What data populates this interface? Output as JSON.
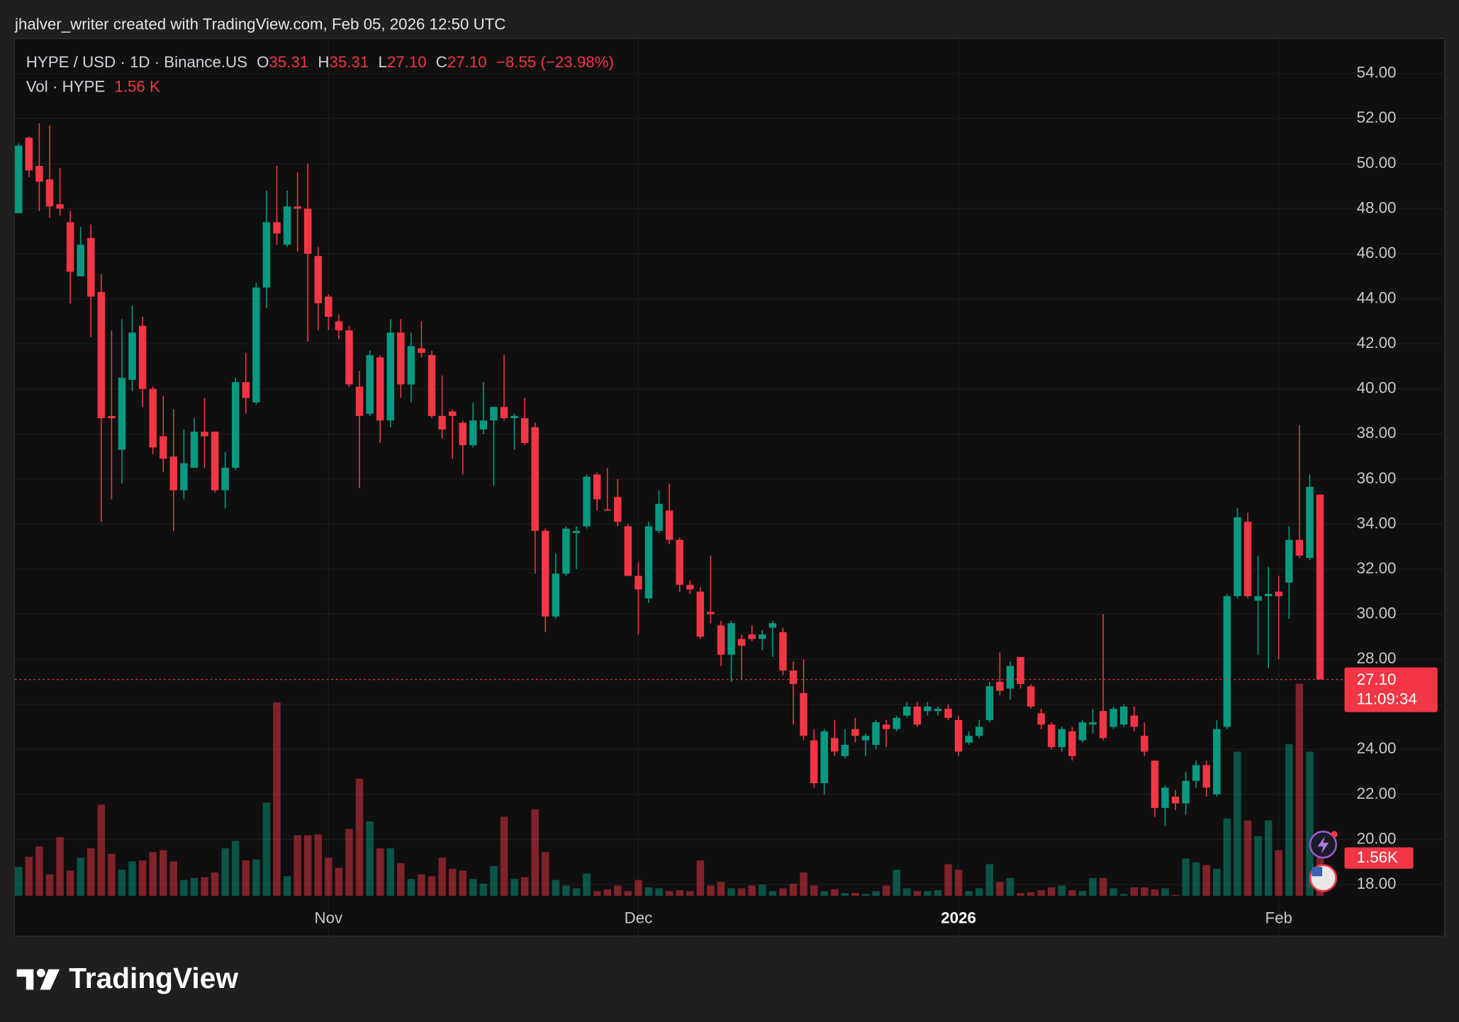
{
  "watermark": "jhalver_writer created with TradingView.com, Feb 05, 2026 12:50 UTC",
  "footer": {
    "brand": "TradingView"
  },
  "chart_data": {
    "type": "candlestick",
    "symbol": "HYPE / USD · 1D · Binance.US",
    "legend": {
      "o_label": "O",
      "open": "35.31",
      "h_label": "H",
      "high": "35.31",
      "l_label": "L",
      "low": "27.10",
      "c_label": "C",
      "close": "27.10",
      "change": "−8.55 (−23.98%)"
    },
    "volume_legend": {
      "label": "Vol · HYPE",
      "value": "1.56 K"
    },
    "open": [
      47.8,
      51.15,
      49.9,
      49.3,
      48.2,
      47.4,
      45.0,
      46.7,
      44.3,
      38.8,
      37.3,
      40.4,
      42.8,
      40.0,
      37.9,
      37.0,
      35.5,
      36.5,
      38.1,
      38.1,
      35.5,
      36.5,
      40.3,
      39.4,
      44.5,
      47.4,
      46.4,
      48.1,
      48.0,
      45.9,
      44.1,
      43.0,
      42.6,
      40.1,
      38.9,
      41.4,
      38.6,
      42.5,
      40.2,
      41.8,
      41.5,
      38.8,
      39.0,
      38.5,
      37.5,
      38.2,
      38.6,
      39.2,
      38.7,
      38.7,
      38.3,
      33.7,
      29.9,
      31.8,
      33.6,
      33.9,
      36.2,
      34.65,
      35.2,
      33.9,
      31.7,
      30.7,
      33.7,
      34.6,
      33.3,
      31.3,
      31.0,
      30.1,
      29.5,
      28.2,
      28.9,
      29.1,
      28.9,
      29.4,
      29.2,
      27.5,
      26.5,
      24.4,
      22.5,
      24.5,
      23.7,
      24.9,
      24.4,
      24.2,
      25.1,
      24.9,
      25.5,
      25.9,
      25.7,
      25.7,
      25.8,
      25.3,
      24.3,
      24.6,
      25.3,
      27.0,
      26.7,
      28.1,
      26.8,
      25.6,
      25.1,
      24.1,
      24.8,
      24.4,
      25.1,
      25.7,
      25.0,
      25.1,
      25.5,
      24.6,
      23.5,
      21.4,
      21.9,
      21.6,
      22.6,
      23.3,
      22.0,
      25.0,
      30.8,
      34.1,
      30.6,
      30.8,
      31.0,
      31.4,
      33.3,
      32.5,
      35.31
    ],
    "high": [
      50.9,
      51.2,
      51.8,
      51.7,
      49.8,
      47.9,
      47.2,
      47.3,
      45.1,
      42.6,
      43.1,
      43.7,
      43.2,
      40.1,
      39.7,
      39.1,
      38.2,
      38.7,
      39.6,
      38.1,
      37.2,
      40.5,
      41.6,
      44.7,
      48.8,
      49.9,
      48.8,
      49.6,
      50.0,
      46.3,
      44.2,
      43.3,
      42.8,
      40.8,
      41.7,
      41.5,
      43.1,
      43.1,
      42.5,
      43.0,
      41.7,
      40.6,
      39.1,
      38.6,
      39.4,
      40.3,
      39.2,
      41.5,
      38.9,
      39.6,
      38.5,
      33.8,
      32.7,
      33.9,
      33.9,
      36.2,
      36.3,
      36.5,
      36.0,
      34.0,
      32.3,
      34.1,
      35.5,
      35.8,
      33.4,
      31.5,
      31.2,
      32.6,
      29.7,
      29.7,
      29.1,
      29.5,
      29.3,
      29.7,
      29.4,
      27.9,
      28.0,
      24.9,
      24.9,
      25.3,
      24.9,
      25.4,
      24.7,
      25.3,
      25.3,
      25.5,
      26.1,
      26.1,
      26.1,
      25.9,
      26.0,
      25.5,
      24.8,
      25.3,
      27.0,
      28.3,
      27.9,
      28.1,
      26.9,
      25.8,
      25.2,
      25.0,
      25.0,
      25.3,
      25.8,
      30.0,
      25.9,
      26.0,
      25.9,
      25.2,
      23.5,
      22.4,
      22.2,
      23.0,
      23.5,
      23.5,
      25.3,
      30.9,
      34.7,
      34.5,
      32.6,
      32.1,
      31.7,
      33.9,
      38.4,
      36.2,
      35.31
    ],
    "low": [
      47.8,
      49.4,
      47.9,
      47.6,
      47.7,
      43.8,
      45.0,
      42.3,
      34.1,
      35.1,
      35.8,
      39.9,
      39.2,
      37.1,
      36.3,
      33.7,
      35.1,
      36.5,
      36.5,
      35.4,
      34.7,
      36.4,
      38.9,
      39.3,
      43.6,
      46.4,
      46.3,
      46.1,
      42.1,
      42.6,
      42.6,
      42.2,
      40.1,
      35.6,
      38.8,
      37.6,
      38.3,
      39.6,
      39.4,
      41.4,
      38.7,
      37.8,
      36.9,
      36.2,
      37.4,
      38.0,
      35.7,
      38.6,
      37.3,
      37.5,
      31.8,
      29.2,
      29.8,
      31.7,
      32.0,
      33.8,
      34.6,
      34.6,
      33.9,
      31.7,
      29.1,
      30.5,
      33.6,
      33.1,
      31.0,
      30.9,
      28.9,
      29.6,
      27.7,
      27.0,
      27.1,
      28.8,
      28.4,
      28.1,
      27.3,
      25.1,
      24.4,
      22.3,
      22.0,
      23.7,
      23.6,
      24.3,
      23.7,
      24.0,
      24.1,
      24.8,
      25.4,
      25.0,
      25.5,
      25.5,
      25.3,
      23.7,
      24.2,
      24.5,
      25.2,
      26.4,
      26.2,
      26.7,
      25.8,
      24.9,
      24.0,
      23.9,
      23.5,
      24.3,
      24.7,
      24.4,
      24.9,
      25.0,
      24.8,
      23.7,
      21.0,
      20.6,
      21.3,
      21.1,
      22.3,
      21.9,
      21.9,
      24.9,
      30.7,
      30.7,
      28.2,
      27.6,
      28.0,
      29.8,
      32.5,
      32.4,
      27.1
    ],
    "close": [
      50.8,
      49.7,
      49.2,
      48.1,
      48.0,
      45.2,
      46.4,
      44.1,
      38.7,
      38.7,
      40.5,
      42.5,
      40.0,
      37.4,
      36.9,
      35.5,
      36.7,
      38.1,
      37.9,
      35.5,
      36.5,
      40.3,
      39.6,
      44.5,
      47.4,
      46.9,
      48.1,
      48.0,
      46.0,
      43.8,
      43.2,
      42.6,
      40.2,
      38.8,
      41.5,
      38.6,
      42.5,
      40.2,
      41.9,
      41.6,
      38.8,
      38.2,
      38.8,
      37.5,
      38.6,
      38.6,
      39.2,
      38.7,
      38.8,
      37.6,
      33.7,
      29.9,
      31.8,
      33.8,
      33.7,
      36.1,
      35.1,
      34.6,
      34.1,
      31.7,
      31.1,
      33.9,
      34.9,
      33.3,
      31.3,
      31.1,
      29.0,
      30.0,
      28.2,
      29.6,
      28.6,
      28.9,
      29.1,
      29.6,
      27.5,
      26.9,
      24.6,
      22.5,
      24.8,
      23.9,
      24.2,
      24.6,
      24.6,
      25.2,
      24.9,
      25.4,
      25.9,
      25.1,
      25.9,
      25.8,
      25.4,
      23.9,
      24.6,
      25.0,
      26.8,
      26.6,
      27.7,
      26.9,
      25.9,
      25.1,
      24.1,
      24.9,
      23.7,
      25.2,
      25.2,
      24.5,
      25.8,
      25.9,
      25.0,
      23.9,
      21.4,
      22.3,
      21.6,
      22.6,
      23.3,
      22.3,
      24.9,
      30.8,
      34.3,
      30.8,
      30.8,
      30.9,
      30.8,
      33.3,
      32.6,
      35.65,
      27.1
    ],
    "volume": [
      1178,
      1596,
      2014,
      874,
      2394,
      1026,
      1558,
      1938,
      3724,
      1710,
      1064,
      1406,
      1444,
      1786,
      1862,
      1406,
      646,
      722,
      760,
      950,
      1938,
      2242,
      1444,
      1482,
      3800,
      7904,
      798,
      2470,
      2470,
      2508,
      1558,
      1140,
      2736,
      4788,
      3040,
      1938,
      1938,
      1330,
      684,
      874,
      798,
      1558,
      1102,
      1026,
      684,
      494,
      1216,
      3230,
      684,
      760,
      3534,
      1786,
      646,
      418,
      304,
      912,
      190,
      266,
      418,
      190,
      646,
      342,
      304,
      190,
      228,
      190,
      1444,
      418,
      570,
      304,
      304,
      418,
      456,
      190,
      304,
      494,
      950,
      418,
      190,
      266,
      114,
      114,
      76,
      190,
      418,
      1064,
      304,
      190,
      190,
      228,
      1292,
      1064,
      190,
      304,
      1292,
      570,
      722,
      114,
      152,
      228,
      342,
      418,
      228,
      190,
      722,
      722,
      304,
      76,
      342,
      342,
      266,
      304,
      38,
      1520,
      1368,
      1254,
      1102,
      3154,
      5890,
      3078,
      2432,
      3078,
      1862,
      6194,
      8664,
      5890,
      1560
    ],
    "up_color": "#089981",
    "down_color": "#f23645",
    "xlim": [
      -0.36,
      128.1
    ],
    "xticks": [
      {
        "value": 30,
        "label": "Nov"
      },
      {
        "value": 60,
        "label": "Dec"
      },
      {
        "value": 91,
        "label": "2026"
      },
      {
        "value": 122,
        "label": "Feb"
      }
    ],
    "ylim": [
      17.5,
      55.53
    ],
    "yticks": [
      {
        "value": 18,
        "label": "18.00"
      },
      {
        "value": 20,
        "label": "20.00"
      },
      {
        "value": 22,
        "label": "22.00"
      },
      {
        "value": 24,
        "label": "24.00"
      },
      {
        "value": 26,
        "label": "26.00"
      },
      {
        "value": 28,
        "label": "28.00"
      },
      {
        "value": 30,
        "label": "30.00"
      },
      {
        "value": 32,
        "label": "32.00"
      },
      {
        "value": 34,
        "label": "34.00"
      },
      {
        "value": 36,
        "label": "36.00"
      },
      {
        "value": 38,
        "label": "38.00"
      },
      {
        "value": 40,
        "label": "40.00"
      },
      {
        "value": 42,
        "label": "42.00"
      },
      {
        "value": 44,
        "label": "44.00"
      },
      {
        "value": 46,
        "label": "46.00"
      },
      {
        "value": 48,
        "label": "48.00"
      },
      {
        "value": 50,
        "label": "50.00"
      },
      {
        "value": 52,
        "label": "52.00"
      },
      {
        "value": 54,
        "label": "54.00"
      }
    ],
    "volume_ylim": [
      0,
      35000
    ],
    "last_price": {
      "value": 27.1,
      "label": "27.10",
      "countdown": "11:09:34"
    },
    "last_volume": {
      "value": 1560,
      "label": "1.56K"
    },
    "grid": true
  }
}
